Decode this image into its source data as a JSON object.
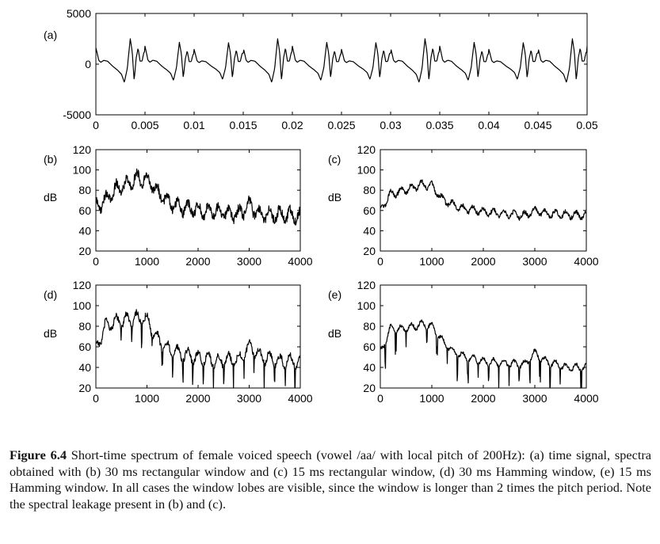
{
  "chart_data": [
    {
      "id": "a",
      "type": "line",
      "panel_label": "(a)",
      "ylabel": "",
      "xlim": [
        0,
        0.05
      ],
      "ylim": [
        -5000,
        5000
      ],
      "x_ticks": [
        "0",
        "0.005",
        "0.01",
        "0.015",
        "0.02",
        "0.025",
        "0.03",
        "0.035",
        "0.04",
        "0.045",
        "0.05"
      ],
      "y_ticks": [
        "5000",
        "0",
        "-5000"
      ],
      "x_tick_values": [
        0,
        0.005,
        0.01,
        0.015,
        0.02,
        0.025,
        0.03,
        0.035,
        0.04,
        0.045,
        0.05
      ],
      "y_tick_values": [
        5000,
        0,
        -5000
      ],
      "series": [
        {
          "period": 0.005,
          "x": [
            0,
            0.0003,
            0.0005,
            0.0008,
            0.0012,
            0.0017,
            0.0022,
            0.0026,
            0.0029,
            0.0032,
            0.0035,
            0.0037,
            0.0039,
            0.0041,
            0.0043,
            0.0045,
            0.0047,
            0.0049
          ],
          "y": [
            1800,
            400,
            200,
            400,
            300,
            -200,
            -600,
            -1000,
            -1800,
            -400,
            2500,
            1200,
            -1600,
            600,
            1600,
            300,
            300,
            1200
          ]
        }
      ],
      "grid": false
    },
    {
      "id": "b",
      "type": "line",
      "panel_label": "(b)",
      "ylabel": "dB",
      "xlim": [
        0,
        4000
      ],
      "ylim": [
        20,
        120
      ],
      "x_ticks": [
        "0",
        "1000",
        "2000",
        "3000",
        "4000"
      ],
      "y_ticks": [
        "120",
        "100",
        "80",
        "60",
        "40",
        "20"
      ],
      "x_tick_values": [
        0,
        1000,
        2000,
        3000,
        4000
      ],
      "y_tick_values": [
        120,
        100,
        80,
        60,
        40,
        20
      ],
      "series": [
        {
          "x": [
            0,
            200,
            400,
            600,
            800,
            1000,
            1200,
            1400,
            1600,
            2000,
            2400,
            2800,
            3000,
            3200,
            3600,
            4000
          ],
          "y": [
            67,
            75,
            85,
            90,
            96,
            95,
            82,
            74,
            68,
            64,
            63,
            60,
            70,
            60,
            60,
            58
          ]
        }
      ],
      "grid": false
    },
    {
      "id": "c",
      "type": "line",
      "panel_label": "(c)",
      "ylabel": "dB",
      "xlim": [
        0,
        4000
      ],
      "ylim": [
        20,
        120
      ],
      "x_ticks": [
        "0",
        "1000",
        "2000",
        "3000",
        "4000"
      ],
      "y_ticks": [
        "120",
        "100",
        "80",
        "60",
        "40",
        "20"
      ],
      "x_tick_values": [
        0,
        1000,
        2000,
        3000,
        4000
      ],
      "y_tick_values": [
        120,
        100,
        80,
        60,
        40,
        20
      ],
      "series": [
        {
          "x": [
            0,
            200,
            400,
            600,
            800,
            1000,
            1200,
            1400,
            1600,
            2000,
            2400,
            2800,
            3000,
            3200,
            3600,
            4000
          ],
          "y": [
            65,
            80,
            83,
            86,
            90,
            88,
            75,
            70,
            66,
            63,
            61,
            59,
            64,
            61,
            60,
            59
          ]
        }
      ],
      "grid": false
    },
    {
      "id": "d",
      "type": "line",
      "panel_label": "(d)",
      "ylabel": "dB",
      "xlim": [
        0,
        4000
      ],
      "ylim": [
        20,
        120
      ],
      "x_ticks": [
        "0",
        "1000",
        "2000",
        "3000",
        "4000"
      ],
      "y_ticks": [
        "120",
        "100",
        "80",
        "60",
        "40",
        "20"
      ],
      "x_tick_values": [
        0,
        1000,
        2000,
        3000,
        4000
      ],
      "y_tick_values": [
        120,
        100,
        80,
        60,
        40,
        20
      ],
      "series": [
        {
          "x": [
            0,
            200,
            400,
            600,
            800,
            1000,
            1200,
            1400,
            1600,
            2000,
            2400,
            2800,
            3000,
            3200,
            3600,
            4000
          ],
          "y": [
            62,
            85,
            88,
            90,
            92,
            90,
            72,
            62,
            58,
            53,
            50,
            52,
            64,
            55,
            50,
            50
          ]
        }
      ],
      "grid": false
    },
    {
      "id": "e",
      "type": "line",
      "panel_label": "(e)",
      "ylabel": "dB",
      "xlim": [
        0,
        4000
      ],
      "ylim": [
        20,
        120
      ],
      "x_ticks": [
        "0",
        "1000",
        "2000",
        "3000",
        "4000"
      ],
      "y_ticks": [
        "120",
        "100",
        "80",
        "60",
        "40",
        "20"
      ],
      "x_tick_values": [
        0,
        1000,
        2000,
        3000,
        4000
      ],
      "y_tick_values": [
        120,
        100,
        80,
        60,
        40,
        20
      ],
      "series": [
        {
          "x": [
            0,
            200,
            400,
            600,
            800,
            1000,
            1200,
            1400,
            1600,
            2000,
            2400,
            2800,
            3000,
            3200,
            3600,
            4000
          ],
          "y": [
            58,
            82,
            81,
            83,
            86,
            84,
            70,
            60,
            55,
            50,
            48,
            47,
            58,
            50,
            44,
            44
          ]
        }
      ],
      "grid": false
    }
  ],
  "caption": {
    "label": "Figure 6.4",
    "text": "Short-time spectrum of female voiced speech (vowel /aa/ with local pitch of 200Hz): (a) time signal, spectra obtained with (b) 30 ms rectangular window and (c) 15 ms rectangular window, (d) 30 ms Hamming window, (e) 15 ms Hamming window. In all cases the window lobes are visible, since the window is longer than 2 times the pitch period. Note the spectral leakage present in (b) and (c)."
  }
}
